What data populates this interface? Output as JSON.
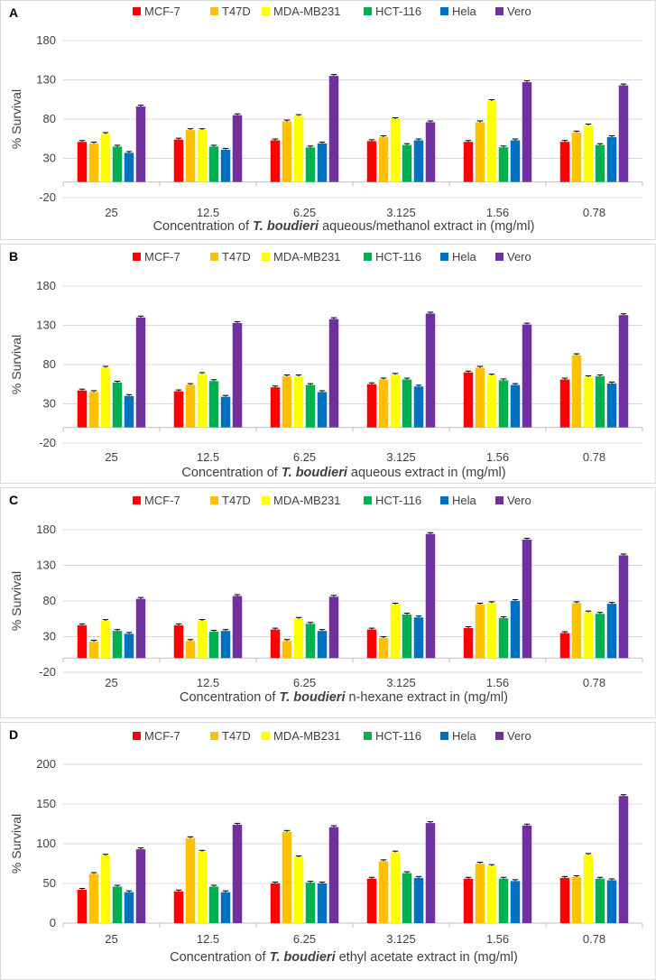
{
  "colors": {
    "MCF-7": "#ff0000",
    "T47D": "#ffc000",
    "MDA-MB231": "#ffff00",
    "HCT-116": "#00b050",
    "Hela": "#0070c0",
    "Vero": "#7030a0"
  },
  "chart_data": [
    {
      "type": "bar",
      "panel_label": "A",
      "title_prefix": "Concentration of ",
      "title_italic": "T. boudieri",
      "title_suffix": " aqueous/methanol extract in (mg/ml)",
      "ylabel": "% Survival",
      "ylim": [
        -20,
        180
      ],
      "yticks": [
        -20,
        30,
        80,
        130,
        180
      ],
      "categories": [
        "25",
        "12.5",
        "6.25",
        "3.125",
        "1.56",
        "0.78"
      ],
      "series": [
        {
          "name": "MCF-7",
          "values": [
            51,
            54,
            53,
            52,
            51,
            51
          ]
        },
        {
          "name": "T47D",
          "values": [
            49,
            66,
            77,
            57,
            76,
            63
          ]
        },
        {
          "name": "MDA-MB231",
          "values": [
            61,
            66,
            84,
            80,
            103,
            72
          ]
        },
        {
          "name": "HCT-116",
          "values": [
            45,
            45,
            44,
            47,
            44,
            47
          ]
        },
        {
          "name": "Hela",
          "values": [
            37,
            41,
            49,
            53,
            53,
            57
          ]
        },
        {
          "name": "Vero",
          "values": [
            96,
            85,
            135,
            76,
            127,
            123
          ]
        }
      ]
    },
    {
      "type": "bar",
      "panel_label": "B",
      "title_prefix": "Concentration of ",
      "title_italic": "T. boudieri",
      "title_suffix": "  aqueous extract in (mg/ml)",
      "ylabel": "% Survival",
      "ylim": [
        -20,
        180
      ],
      "yticks": [
        -20,
        30,
        80,
        130,
        180
      ],
      "categories": [
        "25",
        "12.5",
        "6.25",
        "3.125",
        "1.56",
        "0.78"
      ],
      "series": [
        {
          "name": "MCF-7",
          "values": [
            47,
            46,
            51,
            55,
            70,
            61
          ]
        },
        {
          "name": "T47D",
          "values": [
            45,
            54,
            65,
            61,
            76,
            92
          ]
        },
        {
          "name": "MDA-MB231",
          "values": [
            76,
            68,
            65,
            67,
            66,
            64
          ]
        },
        {
          "name": "HCT-116",
          "values": [
            57,
            59,
            54,
            61,
            60,
            65
          ]
        },
        {
          "name": "Hela",
          "values": [
            40,
            39,
            45,
            52,
            54,
            56
          ]
        },
        {
          "name": "Vero",
          "values": [
            140,
            133,
            138,
            145,
            131,
            143
          ]
        }
      ]
    },
    {
      "type": "bar",
      "panel_label": "C",
      "title_prefix": "Concentration of ",
      "title_italic": "T. boudieri",
      "title_suffix": " n-hexane extract in (mg/ml)",
      "ylabel": "% Survival",
      "ylim": [
        -20,
        180
      ],
      "yticks": [
        -20,
        30,
        80,
        130,
        180
      ],
      "categories": [
        "25",
        "12.5",
        "6.25",
        "3.125",
        "1.56",
        "0.78"
      ],
      "series": [
        {
          "name": "MCF-7",
          "values": [
            46,
            46,
            40,
            40,
            42,
            35
          ]
        },
        {
          "name": "T47D",
          "values": [
            23,
            24,
            24,
            28,
            75,
            77
          ]
        },
        {
          "name": "MDA-MB231",
          "values": [
            52,
            52,
            55,
            75,
            77,
            64
          ]
        },
        {
          "name": "HCT-116",
          "values": [
            38,
            37,
            48,
            61,
            56,
            62
          ]
        },
        {
          "name": "Hela",
          "values": [
            34,
            38,
            38,
            57,
            80,
            76
          ]
        },
        {
          "name": "Vero",
          "values": [
            83,
            87,
            86,
            174,
            166,
            144
          ]
        }
      ]
    },
    {
      "type": "bar",
      "panel_label": "D",
      "title_prefix": "Concentration of ",
      "title_italic": "T. boudieri",
      "title_suffix": " ethyl acetate extract in (mg/ml)",
      "ylabel": "% Survival",
      "ylim": [
        0,
        200
      ],
      "yticks": [
        0,
        50,
        100,
        150,
        200
      ],
      "categories": [
        "25",
        "12.5",
        "6.25",
        "3.125",
        "1.56",
        "0.78"
      ],
      "series": [
        {
          "name": "MCF-7",
          "values": [
            42,
            40,
            50,
            56,
            56,
            57
          ]
        },
        {
          "name": "T47D",
          "values": [
            62,
            107,
            115,
            78,
            75,
            58
          ]
        },
        {
          "name": "MDA-MB231",
          "values": [
            85,
            90,
            83,
            89,
            72,
            86
          ]
        },
        {
          "name": "HCT-116",
          "values": [
            46,
            46,
            51,
            63,
            56,
            56
          ]
        },
        {
          "name": "Hela",
          "values": [
            39,
            39,
            50,
            57,
            53,
            54
          ]
        },
        {
          "name": "Vero",
          "values": [
            93,
            124,
            121,
            126,
            123,
            160
          ]
        }
      ]
    }
  ]
}
